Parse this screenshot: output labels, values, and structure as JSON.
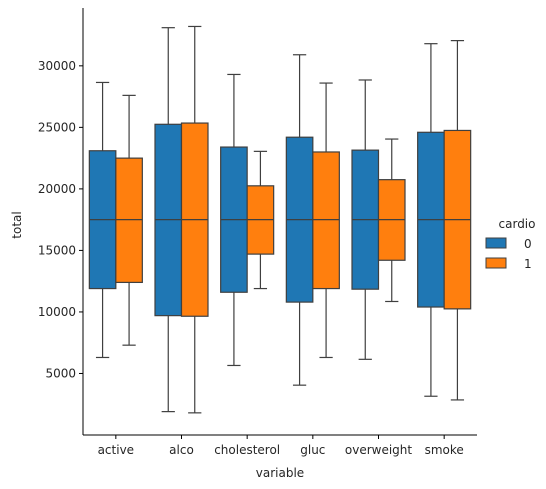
{
  "chart_data": {
    "type": "box",
    "xlabel": "variable",
    "ylabel": "total",
    "categories": [
      "active",
      "alco",
      "cholesterol",
      "gluc",
      "overweight",
      "smoke"
    ],
    "ylim": [
      0,
      34700
    ],
    "yticks": [
      5000,
      10000,
      15000,
      20000,
      25000,
      30000
    ],
    "ytick_labels": [
      "5000",
      "10000",
      "15000",
      "20000",
      "25000",
      "30000"
    ],
    "grid": false,
    "legend": {
      "title": "cardio",
      "placement": "right",
      "entries": [
        "0",
        "1"
      ]
    },
    "series": [
      {
        "name": "0",
        "color": "#1f77b4",
        "boxes": [
          {
            "min": 6300,
            "q1": 11900,
            "median": 17500,
            "q3": 23100,
            "max": 28650
          },
          {
            "min": 1900,
            "q1": 9700,
            "median": 17500,
            "q3": 25250,
            "max": 33100
          },
          {
            "min": 5650,
            "q1": 11600,
            "median": 17500,
            "q3": 23400,
            "max": 29300
          },
          {
            "min": 4050,
            "q1": 10800,
            "median": 17500,
            "q3": 24200,
            "max": 30900
          },
          {
            "min": 6150,
            "q1": 11850,
            "median": 17500,
            "q3": 23150,
            "max": 28850
          },
          {
            "min": 3150,
            "q1": 10400,
            "median": 17500,
            "q3": 24600,
            "max": 31800
          }
        ]
      },
      {
        "name": "1",
        "color": "#ff7f0e",
        "boxes": [
          {
            "min": 7300,
            "q1": 12400,
            "median": 17500,
            "q3": 22500,
            "max": 27600
          },
          {
            "min": 1800,
            "q1": 9650,
            "median": 17500,
            "q3": 25350,
            "max": 33200
          },
          {
            "min": 11900,
            "q1": 14700,
            "median": 17500,
            "q3": 20250,
            "max": 23050
          },
          {
            "min": 6300,
            "q1": 11900,
            "median": 17500,
            "q3": 23000,
            "max": 28600
          },
          {
            "min": 10850,
            "q1": 14200,
            "median": 17500,
            "q3": 20750,
            "max": 24050
          },
          {
            "min": 2850,
            "q1": 10250,
            "median": 17500,
            "q3": 24750,
            "max": 32050
          }
        ]
      }
    ]
  }
}
